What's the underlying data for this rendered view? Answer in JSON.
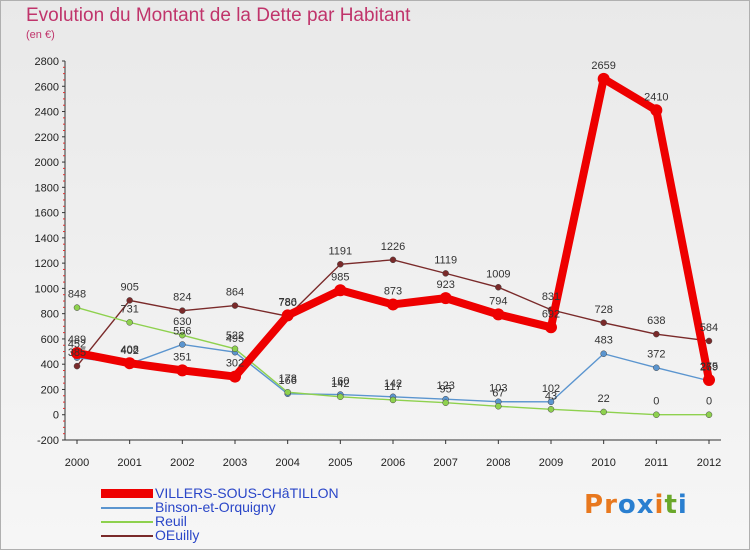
{
  "header": {
    "title": "Evolution du Montant de la Dette par Habitant",
    "subtitle": "(en €)"
  },
  "logo": {
    "text": "Proxiti",
    "letters": [
      "P",
      "r",
      "o",
      "x",
      "i",
      "t",
      "i"
    ],
    "colors": [
      "#e8781e",
      "#e8781e",
      "#2a7fd0",
      "#2a7fd0",
      "#e8781e",
      "#6aa82a",
      "#2a7fd0"
    ]
  },
  "chart_data": {
    "type": "line",
    "title": "Evolution du Montant de la Dette par Habitant",
    "subtitle": "(en €)",
    "xlabel": "",
    "ylabel": "",
    "x": [
      "2000",
      "2001",
      "2002",
      "2003",
      "2004",
      "2005",
      "2006",
      "2007",
      "2008",
      "2009",
      "2010",
      "2011",
      "2012"
    ],
    "ylim": [
      -200,
      2800
    ],
    "yticks": [
      -200,
      0,
      200,
      400,
      600,
      800,
      1000,
      1200,
      1400,
      1600,
      1800,
      2000,
      2200,
      2400,
      2600,
      2800
    ],
    "grid": false,
    "legend": "bottom-left",
    "series": [
      {
        "name": "VILLERS-SOUS-CHâTILLON",
        "color": "#ee0000",
        "values": [
          489,
          408,
          351,
          302,
          786,
          985,
          873,
          923,
          794,
          692,
          2659,
          2410,
          275
        ],
        "labels": [
          "489",
          "408",
          "351",
          "302",
          "786",
          "985",
          "873",
          "923",
          "794",
          "692",
          "2659",
          "2410",
          "275"
        ],
        "highlight": true
      },
      {
        "name": "Binson-et-Orquigny",
        "color": "#5b95cf",
        "values": [
          452,
          402,
          556,
          495,
          166,
          160,
          142,
          123,
          103,
          102,
          483,
          372,
          269
        ],
        "labels": [
          "452",
          "402",
          "556",
          "495",
          "166",
          "160",
          "142",
          "123",
          "103",
          "102",
          "483",
          "372",
          "269"
        ]
      },
      {
        "name": "Reuil",
        "color": "#8ed14e",
        "values": [
          848,
          731,
          630,
          522,
          178,
          142,
          117,
          95,
          67,
          43,
          22,
          0,
          0
        ],
        "labels": [
          "848",
          "731",
          "630",
          "522",
          "178",
          "142",
          "117",
          "95",
          "67",
          "43",
          "22",
          "0",
          "0"
        ]
      },
      {
        "name": "OEuilly",
        "color": "#7a2a2a",
        "values": [
          385,
          905,
          824,
          864,
          780,
          1191,
          1226,
          1119,
          1009,
          831,
          728,
          638,
          584
        ],
        "labels": [
          "385",
          "905",
          "824",
          "864",
          "780",
          "1191",
          "1226",
          "1119",
          "1009",
          "831",
          "728",
          "638",
          "584"
        ]
      }
    ]
  }
}
